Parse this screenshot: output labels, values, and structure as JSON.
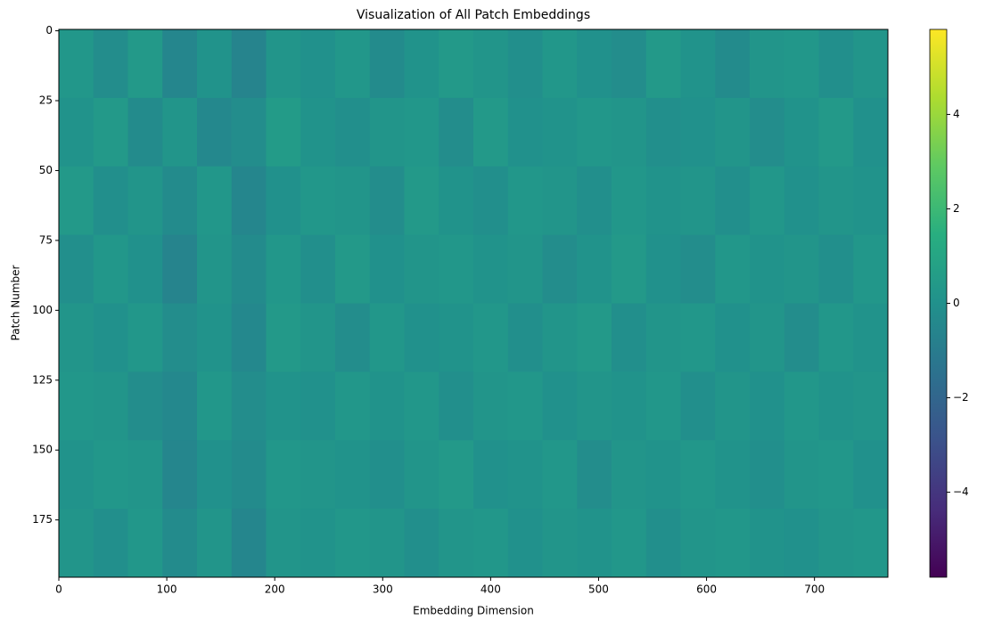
{
  "chart_data": {
    "type": "heatmap",
    "title": "Visualization of All Patch Embeddings",
    "x_label": "Embedding Dimension",
    "y_label": "Patch Number",
    "xlim": [
      0,
      768
    ],
    "xticks": [
      0,
      100,
      200,
      300,
      400,
      500,
      600,
      700
    ],
    "ylim": [
      195.5,
      -0.5
    ],
    "yticks": [
      0,
      25,
      50,
      75,
      100,
      125,
      150,
      175
    ],
    "colormap": "viridis",
    "clim": [
      -5.8,
      5.8
    ],
    "cticks": [
      {
        "value": -4,
        "label": "−4"
      },
      {
        "value": -2,
        "label": "−2"
      },
      0,
      2,
      4
    ],
    "values": [
      [
        0.3,
        -0.2,
        0.4,
        -0.5,
        0.1,
        -0.6,
        0.2,
        0.0,
        0.3,
        -0.3,
        0.1,
        0.4,
        0.2,
        -0.1,
        0.3,
        0.0,
        -0.2,
        0.4,
        0.1,
        -0.3,
        0.2,
        0.3,
        -0.1,
        0.2
      ],
      [
        0.1,
        0.4,
        -0.3,
        0.2,
        -0.4,
        -0.2,
        0.5,
        0.1,
        -0.1,
        0.2,
        0.3,
        -0.2,
        0.4,
        0.0,
        0.1,
        0.3,
        0.2,
        -0.1,
        0.0,
        0.2,
        -0.2,
        0.1,
        0.4,
        0.0
      ],
      [
        0.4,
        -0.1,
        0.2,
        -0.3,
        0.3,
        -0.5,
        0.0,
        0.3,
        0.2,
        -0.2,
        0.4,
        0.1,
        -0.1,
        0.3,
        0.2,
        -0.1,
        0.3,
        0.1,
        0.2,
        -0.1,
        0.3,
        0.0,
        0.2,
        0.1
      ],
      [
        -0.1,
        0.3,
        0.0,
        -0.6,
        0.2,
        -0.3,
        0.3,
        -0.1,
        0.4,
        0.0,
        0.2,
        0.3,
        0.1,
        0.2,
        -0.2,
        0.1,
        0.4,
        0.0,
        -0.2,
        0.3,
        0.1,
        0.2,
        -0.1,
        0.3
      ],
      [
        0.2,
        0.0,
        0.3,
        -0.2,
        0.1,
        -0.4,
        0.4,
        0.2,
        -0.2,
        0.3,
        0.0,
        0.1,
        0.3,
        -0.1,
        0.2,
        0.4,
        -0.1,
        0.2,
        0.3,
        0.0,
        0.2,
        -0.2,
        0.3,
        0.1
      ],
      [
        0.3,
        0.2,
        -0.2,
        -0.4,
        0.3,
        -0.2,
        0.1,
        0.0,
        0.3,
        0.1,
        0.3,
        -0.1,
        0.2,
        0.3,
        0.0,
        0.2,
        0.1,
        0.3,
        -0.1,
        0.2,
        0.0,
        0.3,
        0.1,
        0.2
      ],
      [
        0.1,
        0.3,
        0.2,
        -0.5,
        0.0,
        -0.3,
        0.3,
        0.2,
        0.1,
        -0.1,
        0.2,
        0.4,
        0.0,
        0.1,
        0.3,
        -0.2,
        0.2,
        0.1,
        0.3,
        0.1,
        -0.1,
        0.2,
        0.3,
        0.0
      ],
      [
        0.2,
        -0.1,
        0.3,
        -0.3,
        0.2,
        -0.5,
        0.2,
        0.1,
        0.3,
        0.2,
        -0.1,
        0.2,
        0.3,
        0.0,
        0.2,
        0.1,
        0.3,
        -0.1,
        0.2,
        0.3,
        0.1,
        0.0,
        0.2,
        0.3
      ]
    ]
  }
}
